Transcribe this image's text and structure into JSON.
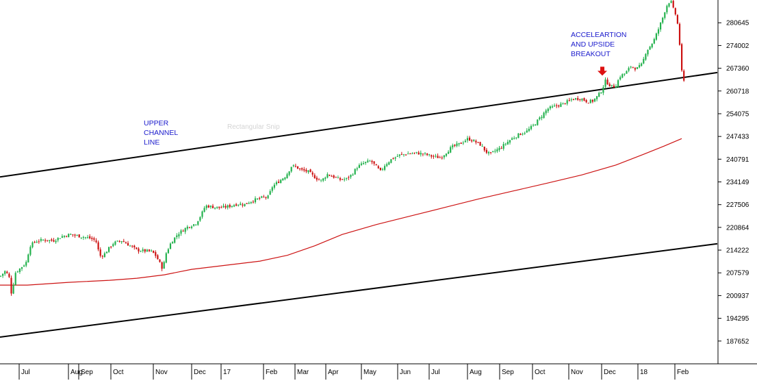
{
  "chart_data": {
    "type": "candlestick",
    "title": "",
    "y_axis": {
      "position": "right",
      "ticks": [
        "280645",
        "274002",
        "267360",
        "260718",
        "254075",
        "247433",
        "240791",
        "234149",
        "227506",
        "220864",
        "214222",
        "207579",
        "200937",
        "194295",
        "187652"
      ],
      "range": [
        181000,
        287300
      ]
    },
    "x_axis": {
      "tick_labels": [
        "Jul",
        "Aug",
        "Sep",
        "Oct",
        "Nov",
        "Dec",
        "17",
        "Feb",
        "Mar",
        "Apr",
        "May",
        "Jun",
        "Jul",
        "Aug",
        "Sep",
        "Oct",
        "Nov",
        "Dec",
        "18",
        "Feb"
      ]
    },
    "grid": false,
    "colors": {
      "up": "#22b14c",
      "down": "#cc1111",
      "moving_average": "#cc1111",
      "channel_lines": "#000000",
      "annotation": "#1a1acc",
      "arrow": "#dd1111"
    },
    "price_path": [
      [
        0,
        206500
      ],
      [
        8,
        208200
      ],
      [
        14,
        206000
      ],
      [
        17,
        201000
      ],
      [
        22,
        207500
      ],
      [
        30,
        209000
      ],
      [
        38,
        210500
      ],
      [
        44,
        215500
      ],
      [
        52,
        216800
      ],
      [
        64,
        217200
      ],
      [
        78,
        217000
      ],
      [
        90,
        218200
      ],
      [
        102,
        218800
      ],
      [
        116,
        218300
      ],
      [
        130,
        217800
      ],
      [
        140,
        217000
      ],
      [
        146,
        212500
      ],
      [
        152,
        212900
      ],
      [
        158,
        214500
      ],
      [
        166,
        216300
      ],
      [
        178,
        217000
      ],
      [
        190,
        215500
      ],
      [
        200,
        214200
      ],
      [
        212,
        214000
      ],
      [
        222,
        213800
      ],
      [
        228,
        212500
      ],
      [
        234,
        210200
      ],
      [
        238,
        208600
      ],
      [
        242,
        213000
      ],
      [
        250,
        216500
      ],
      [
        260,
        219000
      ],
      [
        274,
        221000
      ],
      [
        286,
        222000
      ],
      [
        294,
        224500
      ],
      [
        300,
        227200
      ],
      [
        312,
        226800
      ],
      [
        322,
        226600
      ],
      [
        334,
        227000
      ],
      [
        346,
        227700
      ],
      [
        358,
        227600
      ],
      [
        366,
        228500
      ],
      [
        374,
        229000
      ],
      [
        384,
        229600
      ],
      [
        392,
        229800
      ],
      [
        398,
        232800
      ],
      [
        408,
        234400
      ],
      [
        418,
        236000
      ],
      [
        426,
        238800
      ],
      [
        432,
        238600
      ],
      [
        440,
        237600
      ],
      [
        450,
        237200
      ],
      [
        458,
        235800
      ],
      [
        464,
        235000
      ],
      [
        470,
        234500
      ],
      [
        478,
        236400
      ],
      [
        486,
        235800
      ],
      [
        496,
        234800
      ],
      [
        506,
        235000
      ],
      [
        514,
        236300
      ],
      [
        522,
        238500
      ],
      [
        532,
        239700
      ],
      [
        542,
        240300
      ],
      [
        550,
        238500
      ],
      [
        556,
        237200
      ],
      [
        562,
        239000
      ],
      [
        572,
        240800
      ],
      [
        584,
        242000
      ],
      [
        596,
        242400
      ],
      [
        608,
        242600
      ],
      [
        620,
        242300
      ],
      [
        632,
        241600
      ],
      [
        644,
        241200
      ],
      [
        652,
        242800
      ],
      [
        660,
        244300
      ],
      [
        672,
        245300
      ],
      [
        684,
        246800
      ],
      [
        694,
        245900
      ],
      [
        702,
        245000
      ],
      [
        710,
        243000
      ],
      [
        716,
        242200
      ],
      [
        724,
        243300
      ],
      [
        732,
        244200
      ],
      [
        740,
        245600
      ],
      [
        748,
        246800
      ],
      [
        758,
        248000
      ],
      [
        770,
        249000
      ],
      [
        780,
        250800
      ],
      [
        790,
        253100
      ],
      [
        800,
        255500
      ],
      [
        812,
        256300
      ],
      [
        824,
        257100
      ],
      [
        836,
        258300
      ],
      [
        848,
        258600
      ],
      [
        858,
        257600
      ],
      [
        866,
        257800
      ],
      [
        874,
        259400
      ],
      [
        880,
        261200
      ],
      [
        884,
        263700
      ],
      [
        888,
        263000
      ],
      [
        892,
        262200
      ],
      [
        896,
        261900
      ],
      [
        900,
        262500
      ],
      [
        906,
        265000
      ],
      [
        914,
        266000
      ],
      [
        922,
        268000
      ],
      [
        930,
        267200
      ],
      [
        938,
        268500
      ],
      [
        944,
        272300
      ],
      [
        950,
        273800
      ],
      [
        956,
        275800
      ],
      [
        962,
        278800
      ],
      [
        968,
        282000
      ],
      [
        972,
        284500
      ],
      [
        976,
        286500
      ],
      [
        980,
        287000
      ],
      [
        984,
        284500
      ],
      [
        988,
        282600
      ],
      [
        991,
        279000
      ],
      [
        994,
        272000
      ],
      [
        996,
        266500
      ],
      [
        998,
        262000
      ],
      [
        1000,
        264500
      ]
    ],
    "series": [
      {
        "type": "moving_average",
        "points": [
          [
            0,
            204000
          ],
          [
            40,
            204000
          ],
          [
            100,
            204800
          ],
          [
            160,
            205400
          ],
          [
            200,
            206000
          ],
          [
            240,
            207000
          ],
          [
            280,
            208600
          ],
          [
            330,
            209800
          ],
          [
            380,
            211000
          ],
          [
            420,
            212700
          ],
          [
            460,
            215500
          ],
          [
            500,
            218800
          ],
          [
            550,
            221700
          ],
          [
            600,
            224200
          ],
          [
            650,
            226700
          ],
          [
            700,
            229200
          ],
          [
            750,
            231500
          ],
          [
            800,
            233800
          ],
          [
            850,
            236200
          ],
          [
            900,
            239100
          ],
          [
            940,
            242200
          ],
          [
            970,
            244600
          ],
          [
            996,
            246800
          ]
        ]
      },
      {
        "type": "trendline",
        "points": [
          [
            0,
            235600
          ],
          [
            1048,
            266100
          ]
        ]
      },
      {
        "type": "trendline",
        "points": [
          [
            0,
            188800
          ],
          [
            1048,
            216100
          ]
        ]
      }
    ],
    "annotations": [
      {
        "lines": [
          "UPPER",
          "CHANNEL",
          "LINE"
        ]
      },
      {
        "lines": [
          "ACCELEARTION",
          "AND UPSIDE",
          "BREAKOUT"
        ],
        "arrow": "down",
        "arrow_price": 265200
      }
    ],
    "ghost_text": "Rectangular Snip"
  }
}
